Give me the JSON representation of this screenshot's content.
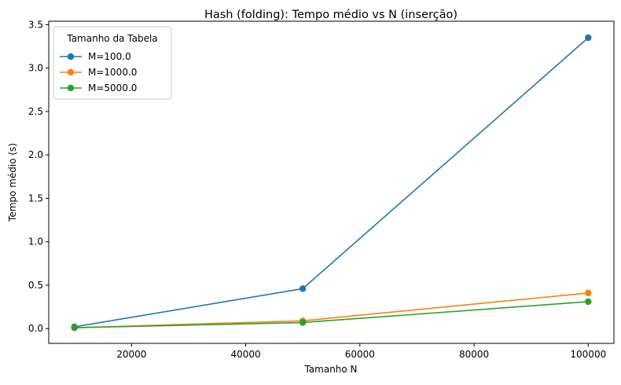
{
  "chart_data": {
    "type": "line",
    "title": "Hash (folding): Tempo médio vs N (inserção)",
    "xlabel": "Tamanho N",
    "ylabel": "Tempo médio (s)",
    "x": [
      10000,
      50000,
      100000
    ],
    "xlim": [
      5500,
      104500
    ],
    "ylim": [
      -0.17,
      3.54
    ],
    "xticks": [
      20000,
      40000,
      60000,
      80000,
      100000
    ],
    "yticks": [
      0.0,
      0.5,
      1.0,
      1.5,
      2.0,
      2.5,
      3.0,
      3.5
    ],
    "legend_title": "Tamanho da Tabela",
    "legend_position": "top-left",
    "grid": false,
    "series": [
      {
        "name": "M=100.0",
        "color": "#1f77b4",
        "values": [
          0.02,
          0.46,
          3.35
        ]
      },
      {
        "name": "M=1000.0",
        "color": "#ff7f0e",
        "values": [
          0.01,
          0.09,
          0.41
        ]
      },
      {
        "name": "M=5000.0",
        "color": "#2ca02c",
        "values": [
          0.01,
          0.07,
          0.31
        ]
      }
    ]
  }
}
